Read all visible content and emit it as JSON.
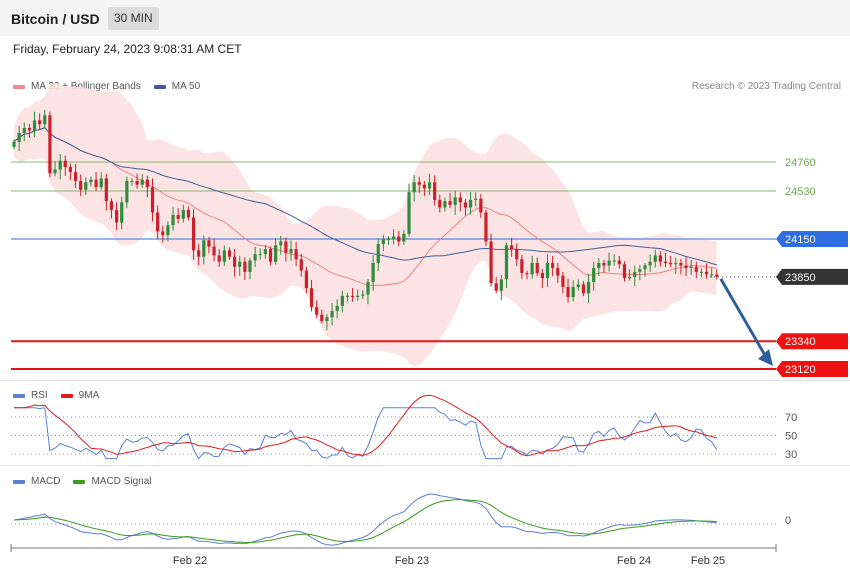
{
  "header": {
    "title": "Bitcoin / USD",
    "timeframe": "30 MIN"
  },
  "datetime": "Friday, February 24, 2023 9:08:31 AM CET",
  "legend_main": [
    {
      "label": "MA 20 + Bollinger Bands",
      "color": "#f28b8b"
    },
    {
      "label": "MA 50",
      "color": "#3b5f9e"
    }
  ],
  "credit": "Research © 2023 Trading Central",
  "legend_rsi": [
    {
      "label": "RSI",
      "color": "#5b7fd6"
    },
    {
      "label": "9MA",
      "color": "#e31b1b"
    }
  ],
  "legend_macd": [
    {
      "label": "MACD",
      "color": "#5b7fd6"
    },
    {
      "label": "MACD Signal",
      "color": "#3a9a1a"
    }
  ],
  "colors": {
    "resistance": "#6aa84f",
    "pivot": "#2f6ee0",
    "support": "#ee1111",
    "current": "#333333",
    "arrow": "#2e5d9e",
    "candle_up": "#2e8b3a",
    "candle_down": "#cc1f2a"
  },
  "chart_data": {
    "type": "candlestick",
    "x_ticks": [
      "Feb 22",
      "Feb 23",
      "Feb 24",
      "Feb 25"
    ],
    "ylim": [
      22900,
      25400
    ],
    "levels": [
      {
        "value": 24760,
        "label": "24760",
        "kind": "resistance"
      },
      {
        "value": 24530,
        "label": "24530",
        "kind": "resistance"
      },
      {
        "value": 24150,
        "label": "24150",
        "kind": "pivot"
      },
      {
        "value": 23850,
        "label": "23850",
        "kind": "current"
      },
      {
        "value": 23340,
        "label": "23340",
        "kind": "support"
      },
      {
        "value": 23120,
        "label": "23120",
        "kind": "support"
      }
    ],
    "closes": [
      24920,
      24990,
      25030,
      25010,
      25090,
      25060,
      25130,
      24670,
      24700,
      24770,
      24720,
      24680,
      24610,
      24540,
      24600,
      24620,
      24560,
      24630,
      24450,
      24380,
      24280,
      24440,
      24610,
      24610,
      24580,
      24620,
      24560,
      24360,
      24210,
      24180,
      24260,
      24340,
      24310,
      24380,
      24320,
      24060,
      24010,
      24140,
      24090,
      24020,
      23970,
      24060,
      24010,
      23930,
      23970,
      23890,
      23980,
      24030,
      24030,
      24070,
      23970,
      24100,
      24130,
      24040,
      24070,
      23990,
      23900,
      23760,
      23610,
      23550,
      23500,
      23530,
      23580,
      23620,
      23700,
      23700,
      23690,
      23700,
      23710,
      23810,
      23960,
      24110,
      24150,
      24150,
      24170,
      24130,
      24190,
      24520,
      24600,
      24580,
      24550,
      24600,
      24460,
      24400,
      24450,
      24420,
      24480,
      24440,
      24400,
      24460,
      24470,
      24360,
      24130,
      23800,
      23740,
      23830,
      24100,
      24070,
      23990,
      23880,
      23870,
      23960,
      23880,
      23840,
      23960,
      23920,
      23860,
      23770,
      23690,
      23770,
      23790,
      23720,
      23810,
      23920,
      23960,
      23940,
      23980,
      23980,
      23950,
      23840,
      23850,
      23890,
      23910,
      23940,
      23970,
      24020,
      23970,
      23960,
      23950,
      23960,
      23940,
      23920,
      23930,
      23890,
      23890,
      23870,
      23870,
      23850
    ],
    "rsi": {
      "ticks": [
        70,
        50,
        30
      ],
      "ylim": [
        25,
        80
      ]
    },
    "macd": {
      "ticks": [
        0
      ]
    }
  }
}
